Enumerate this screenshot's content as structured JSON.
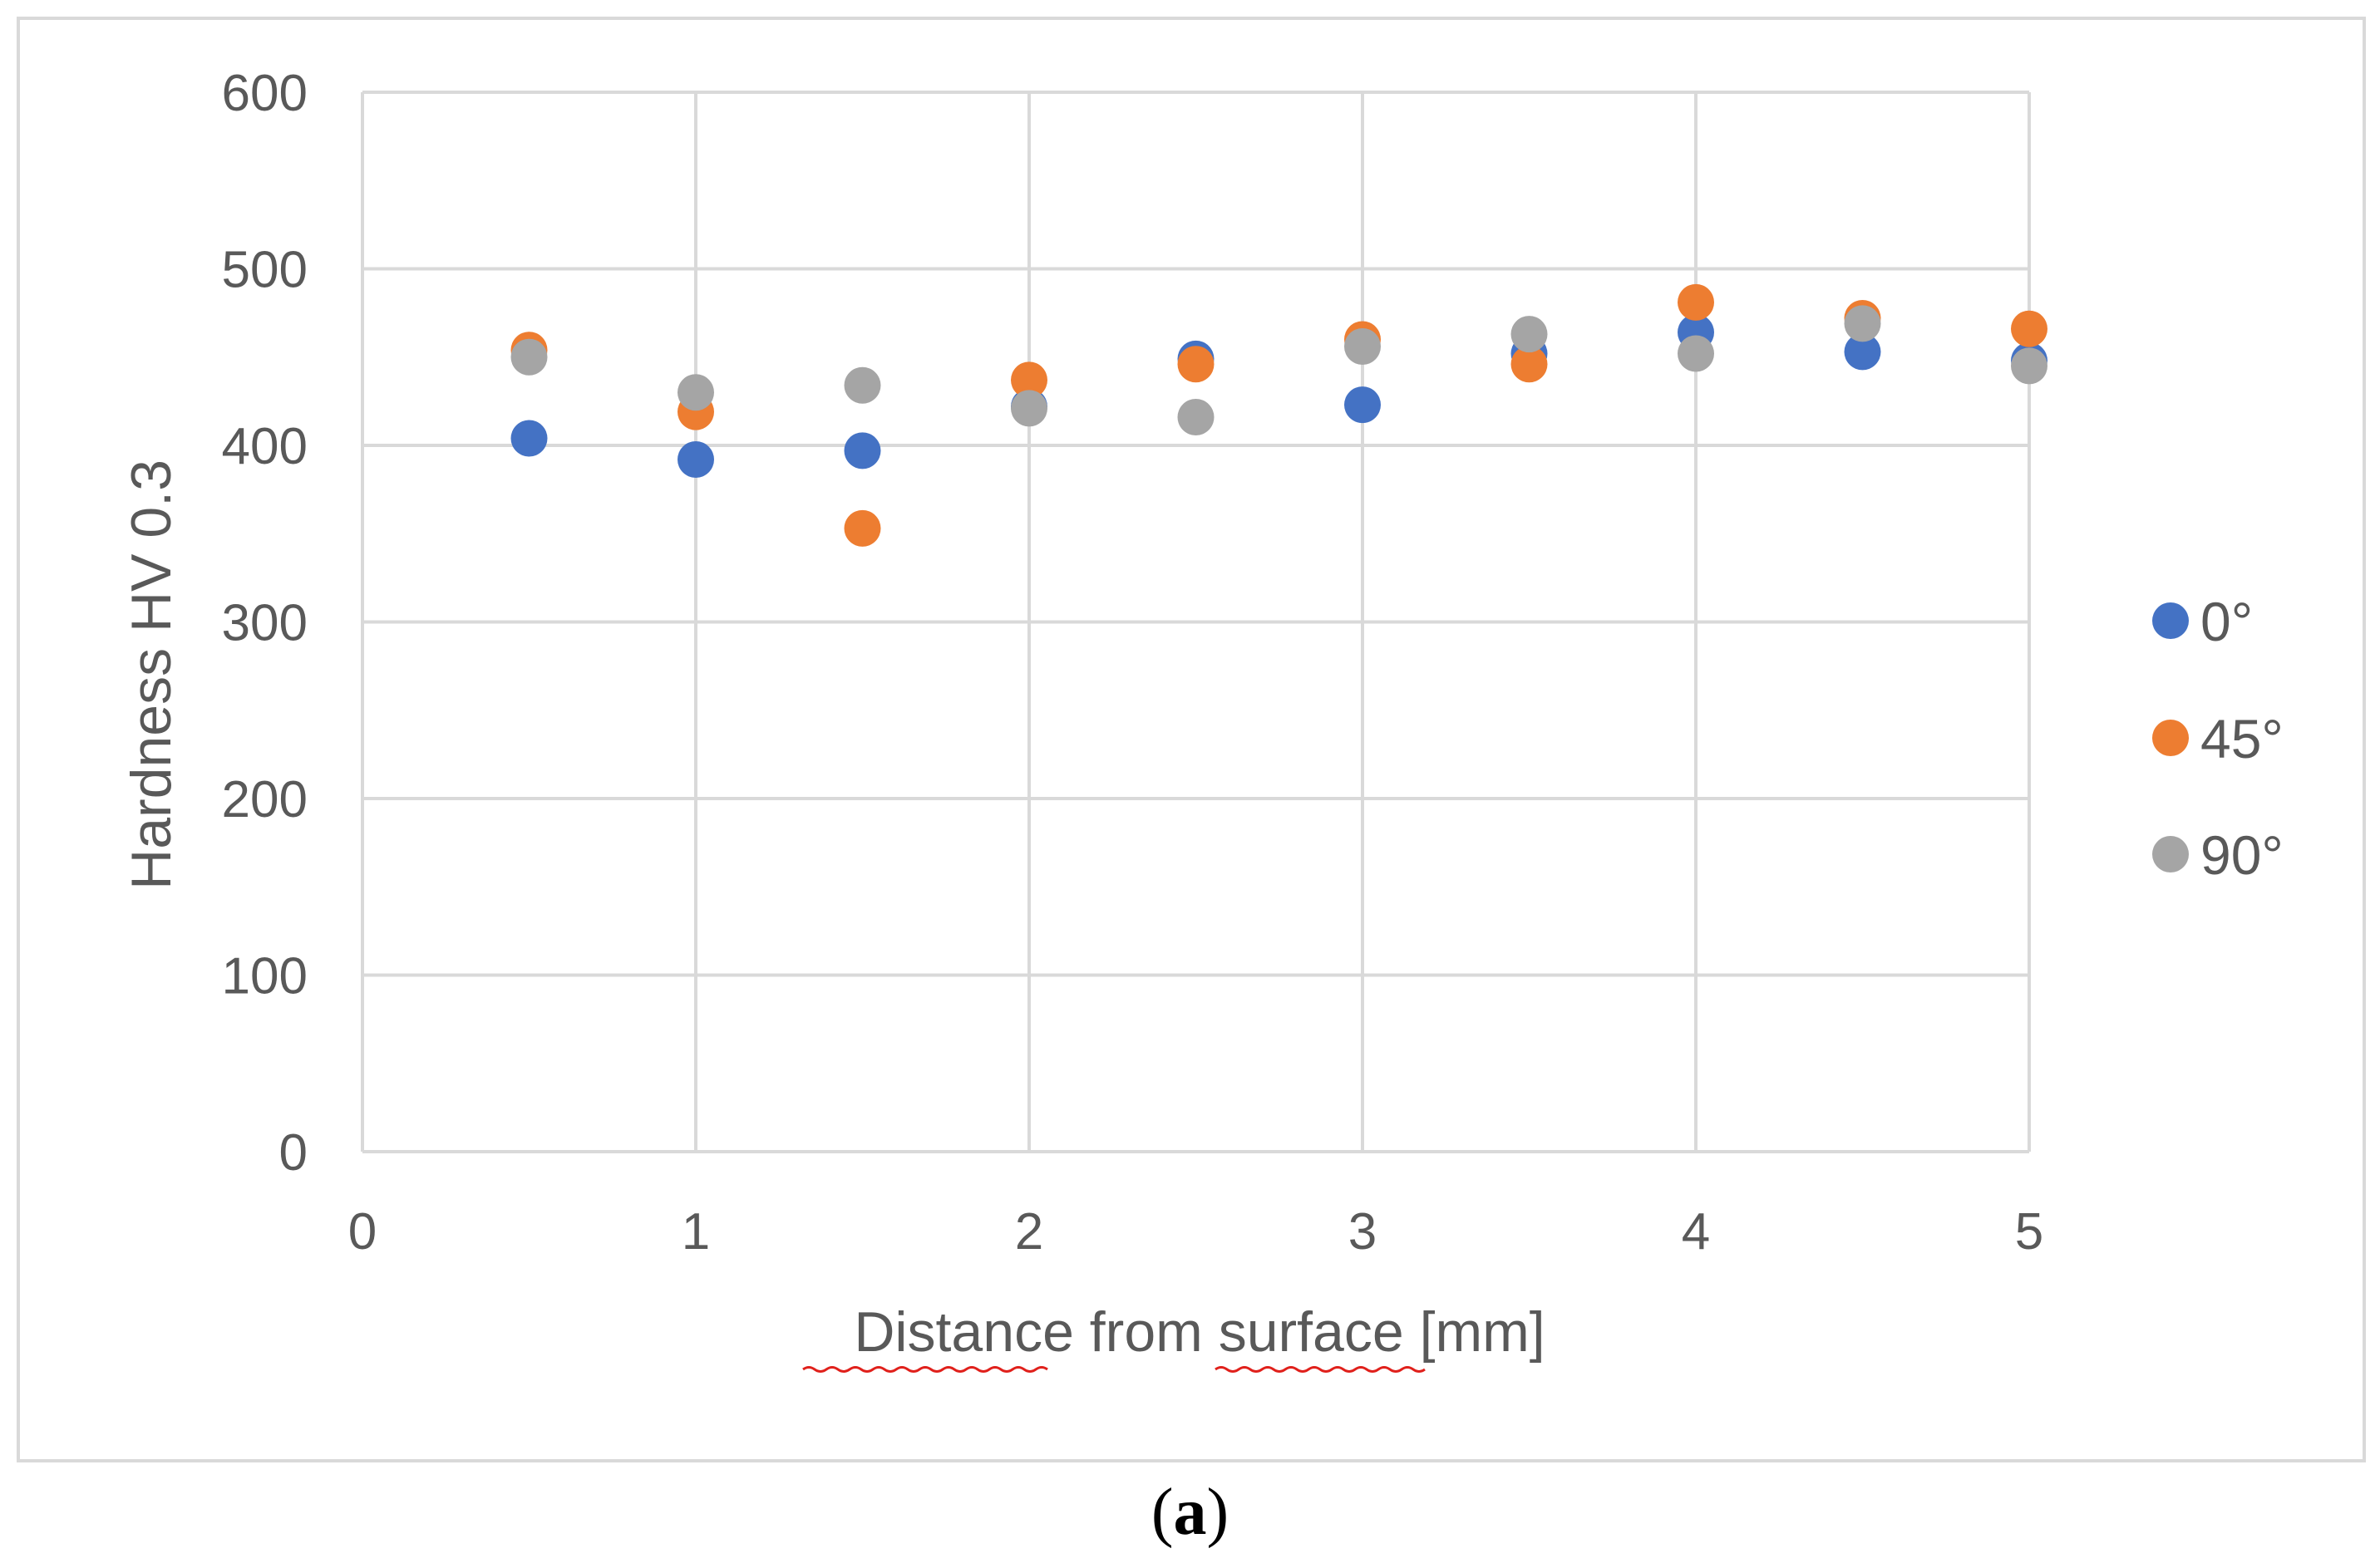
{
  "caption": {
    "open": "(",
    "letter": "a",
    "close": ")"
  },
  "colors": {
    "series_0": "#4472c4",
    "series_45": "#ed7d31",
    "series_90": "#a5a5a5",
    "grid": "#d9d9d9",
    "text": "#595959",
    "spellcheck": "#e0201b"
  },
  "chart_data": {
    "type": "scatter",
    "title": "",
    "xlabel_parts": [
      "Distance",
      " from ",
      "surface",
      " [mm]"
    ],
    "ylabel": "Hardness HV 0.3",
    "xlim": [
      0,
      5
    ],
    "ylim": [
      0,
      600
    ],
    "x_ticks": [
      "0",
      "1",
      "2",
      "3",
      "4",
      "5"
    ],
    "y_ticks": [
      "0",
      "100",
      "200",
      "300",
      "400",
      "500",
      "600"
    ],
    "grid": true,
    "legend_position": "right",
    "series": [
      {
        "name": "0°",
        "x": [
          0.5,
          1,
          1.5,
          2,
          2.5,
          3,
          3.5,
          4,
          4.5,
          5
        ],
        "y": [
          404,
          392,
          397,
          422,
          449,
          423,
          452,
          464,
          453,
          448
        ]
      },
      {
        "name": "45°",
        "x": [
          0.5,
          1,
          1.5,
          2,
          2.5,
          3,
          3.5,
          4,
          4.5,
          5
        ],
        "y": [
          454,
          419,
          353,
          437,
          446,
          460,
          446,
          481,
          472,
          466
        ]
      },
      {
        "name": "90°",
        "x": [
          0.5,
          1,
          1.5,
          2,
          2.5,
          3,
          3.5,
          4,
          4.5,
          5
        ],
        "y": [
          450,
          430,
          434,
          421,
          416,
          456,
          463,
          452,
          469,
          445
        ]
      }
    ]
  }
}
